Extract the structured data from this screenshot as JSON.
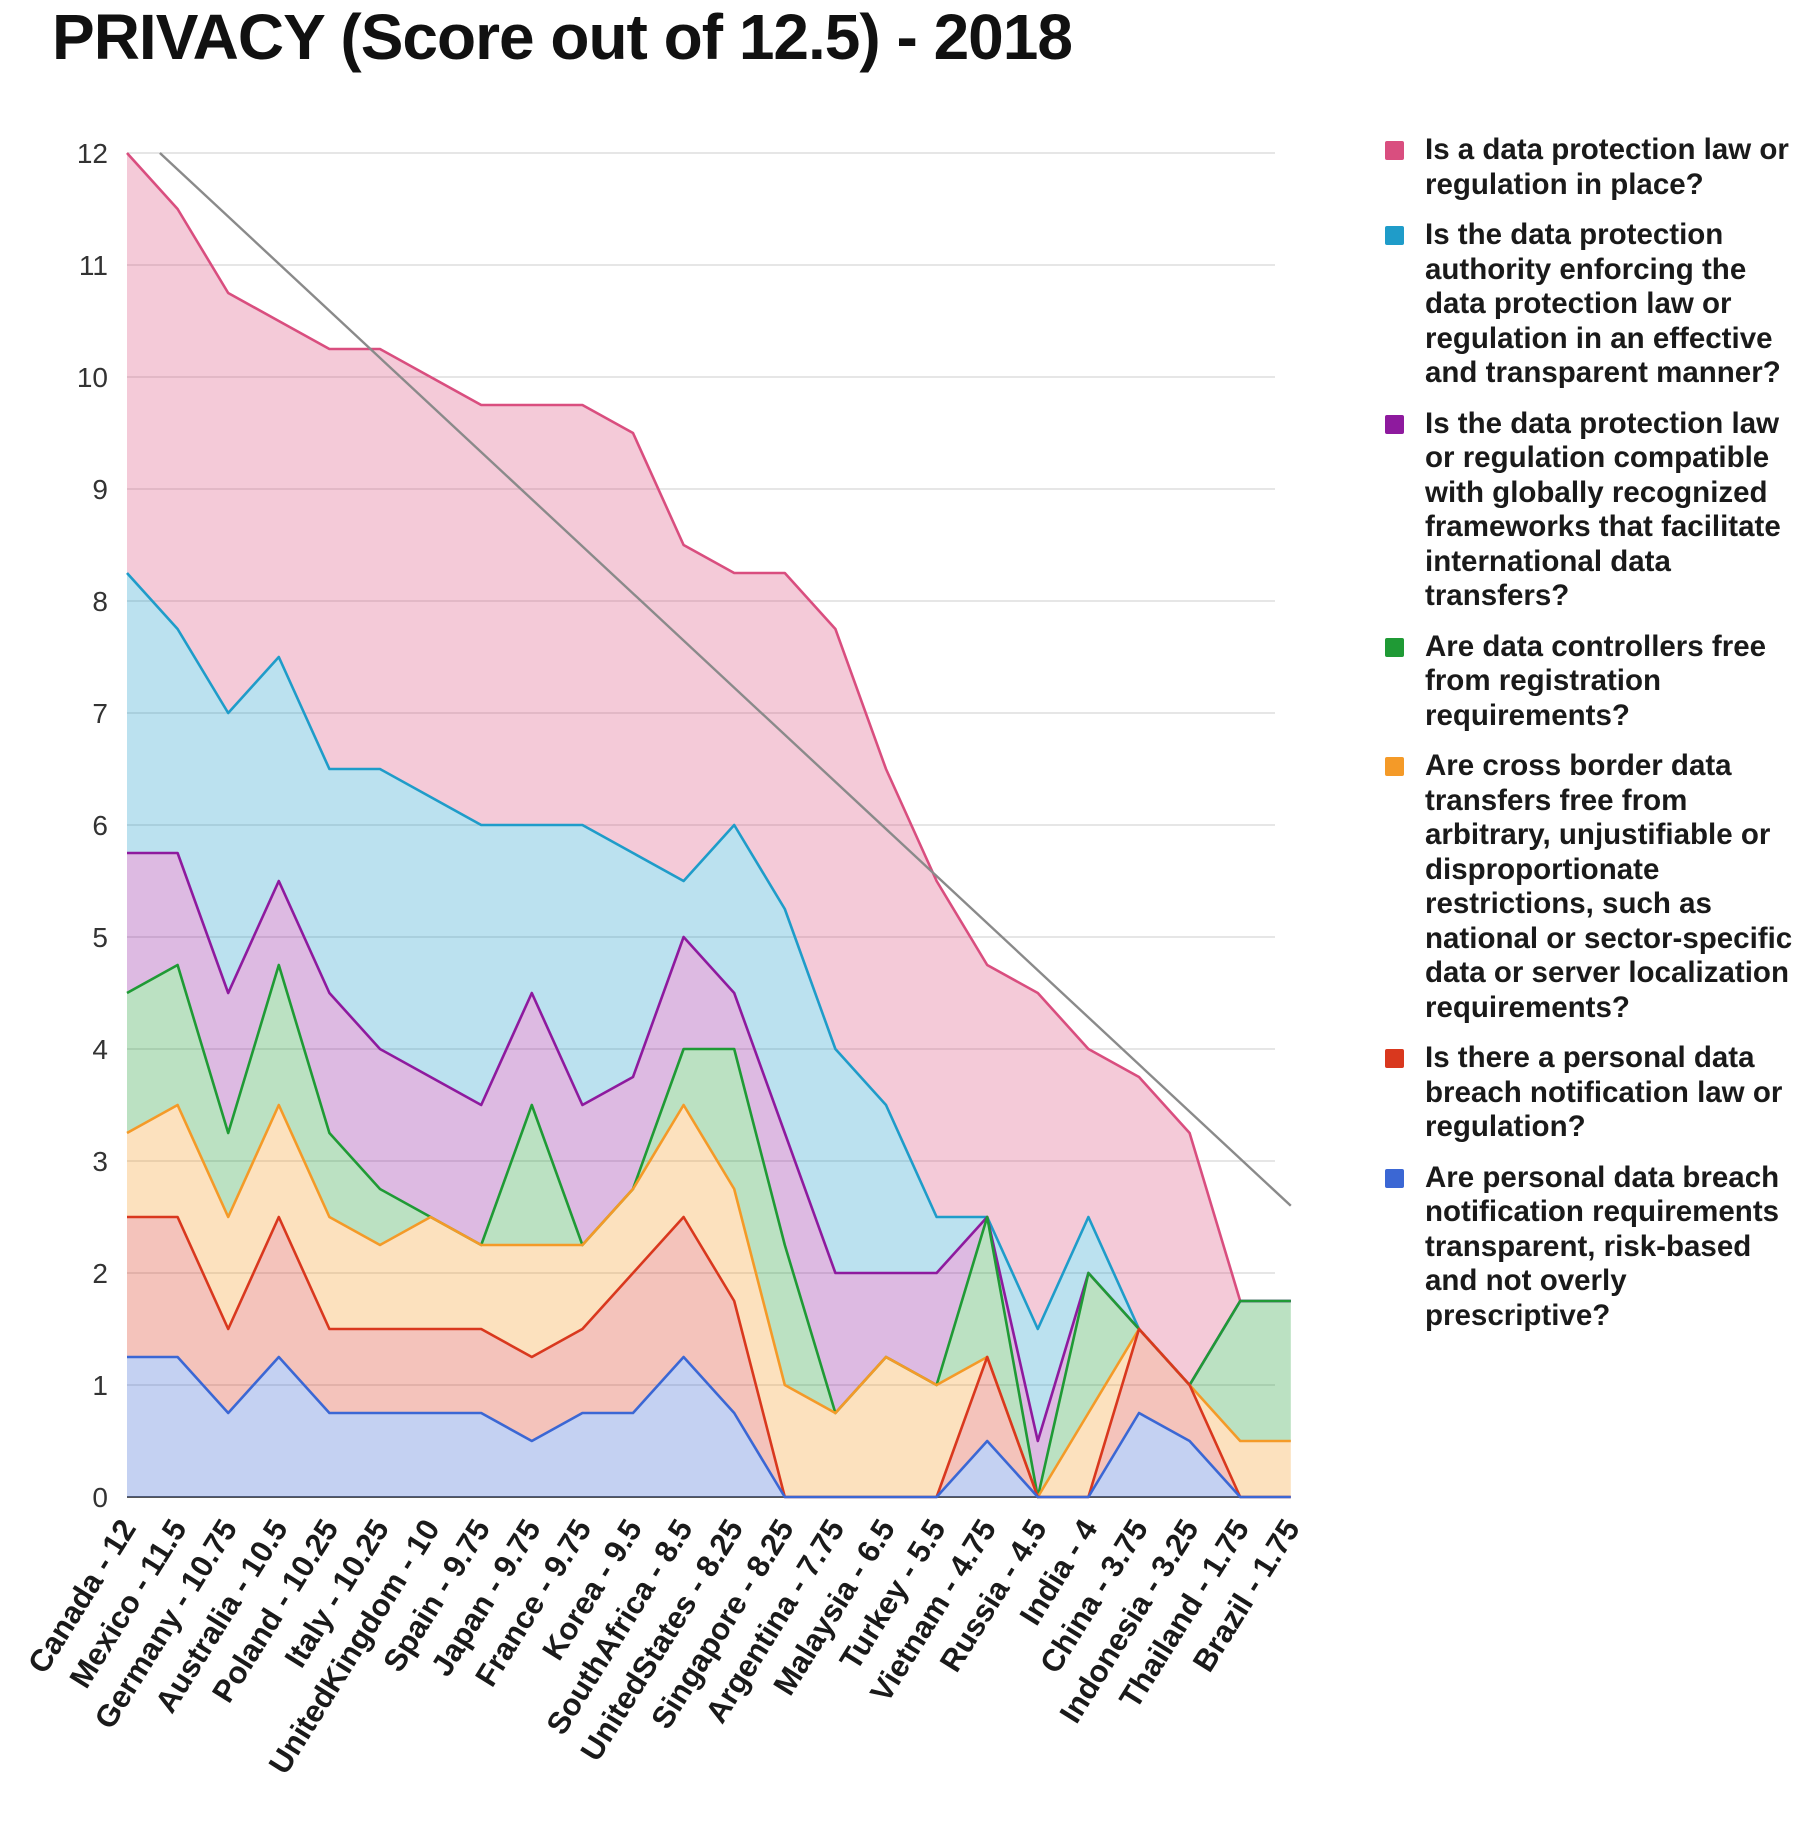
{
  "title": "PRIVACY (Score out of 12.5) - 2018",
  "colors": {
    "law": "#d94e7f",
    "authority": "#1f9cc9",
    "compatible": "#8e1a9e",
    "registration": "#1f9a35",
    "cross_border": "#f49a28",
    "breach_law": "#d9381e",
    "breach_req": "#3b67d4",
    "trend": "#8a8a8a"
  },
  "chart_data": {
    "type": "area",
    "title": "PRIVACY (Score out of 12.5) - 2018",
    "xlabel": "",
    "ylabel": "",
    "ylim": [
      0,
      12
    ],
    "yticks": [
      0,
      1,
      2,
      3,
      4,
      5,
      6,
      7,
      8,
      9,
      10,
      11,
      12
    ],
    "grid": true,
    "legend_position": "right",
    "categories": [
      "Canada - 12",
      "Mexico - 11.5",
      "Germany - 10.75",
      "Australia - 10.5",
      "Poland - 10.25",
      "Italy - 10.25",
      "UnitedKingdom - 10",
      "Spain - 9.75",
      "Japan - 9.75",
      "France - 9.75",
      "Korea - 9.5",
      "SouthAfrica - 8.5",
      "UnitedStates - 8.25",
      "Singapore - 8.25",
      "Argentina - 7.75",
      "Malaysia - 6.5",
      "Turkey - 5.5",
      "Vietnam - 4.75",
      "Russia - 4.5",
      "India - 4",
      "China - 3.75",
      "Indonesia - 3.25",
      "Thailand - 1.75",
      "Brazil - 1.75"
    ],
    "stacking": "cumulative values shown (each series plotted as the running total up to and including that series)",
    "series": [
      {
        "name": "Are personal data breach notification requirements transparent, risk-based and not overly prescriptive?",
        "color_key": "breach_req",
        "values": [
          1.25,
          1.25,
          0.75,
          1.25,
          0.75,
          0.75,
          0.75,
          0.75,
          0.5,
          0.75,
          0.75,
          1.25,
          0.75,
          0,
          0,
          0,
          0,
          0.5,
          0,
          0,
          0.75,
          0.5,
          0,
          0
        ]
      },
      {
        "name": "Is there a personal data breach notification law or regulation?",
        "color_key": "breach_law",
        "values": [
          2.5,
          2.5,
          1.5,
          2.5,
          1.5,
          1.5,
          1.5,
          1.5,
          1.25,
          1.5,
          2,
          2.5,
          1.75,
          0,
          0,
          0,
          0,
          1.25,
          0,
          0,
          1.5,
          1,
          0,
          0
        ]
      },
      {
        "name": "Are cross border data transfers free from arbitrary, unjustifiable or disproportionate restrictions, such as national or sector-specific data or server localization requirements?",
        "color_key": "cross_border",
        "values": [
          3.25,
          3.5,
          2.5,
          3.5,
          2.5,
          2.25,
          2.5,
          2.25,
          2.25,
          2.25,
          2.75,
          3.5,
          2.75,
          1,
          0.75,
          1.25,
          1,
          1.25,
          0,
          0.75,
          1.5,
          1,
          0.5,
          0.5
        ]
      },
      {
        "name": "Are data controllers free from registration requirements?",
        "color_key": "registration",
        "values": [
          4.5,
          4.75,
          3.25,
          4.75,
          3.25,
          2.75,
          2.5,
          2.25,
          3.5,
          2.25,
          2.75,
          4,
          4,
          2.25,
          0.75,
          1.25,
          1,
          2.5,
          0,
          2,
          1.5,
          1,
          1.75,
          1.75
        ]
      },
      {
        "name": "Is the data protection law or regulation compatible with globally recognized frameworks that facilitate international data transfers?",
        "color_key": "compatible",
        "values": [
          5.75,
          5.75,
          4.5,
          5.5,
          4.5,
          4,
          3.75,
          3.5,
          4.5,
          3.5,
          3.75,
          5,
          4.5,
          3.25,
          2,
          2,
          2,
          2.5,
          0.5,
          2,
          1.5,
          1,
          1.75,
          1.75
        ]
      },
      {
        "name": "Is the data protection authority enforcing the data protection law or regulation in an effective and transparent manner?",
        "color_key": "authority",
        "values": [
          8.25,
          7.75,
          7,
          7.5,
          6.5,
          6.5,
          6.25,
          6,
          6,
          6,
          5.75,
          5.5,
          6,
          5.25,
          4,
          3.5,
          2.5,
          2.5,
          1.5,
          2.5,
          1.5,
          1,
          1.75,
          1.75
        ]
      },
      {
        "name": "Is a data protection law or regulation in place?",
        "color_key": "law",
        "values": [
          12,
          11.5,
          10.75,
          10.5,
          10.25,
          10.25,
          10,
          9.75,
          9.75,
          9.75,
          9.5,
          8.5,
          8.25,
          8.25,
          7.75,
          6.5,
          5.5,
          4.75,
          4.5,
          4,
          3.75,
          3.25,
          1.75,
          1.75
        ]
      }
    ],
    "trendline": {
      "type": "linear",
      "y_start": 12,
      "y_end": 2.6,
      "x_start_index": 0.65,
      "x_end_index": 23
    }
  },
  "legend_order": [
    "law",
    "authority",
    "compatible",
    "registration",
    "cross_border",
    "breach_law",
    "breach_req"
  ],
  "legend_labels": {
    "law": "Is a data protection law or regulation in place?",
    "authority": "Is the data protection authority enforcing the data protection law or regulation in an effective and transparent manner?",
    "compatible": "Is the data protection law or regulation compatible with globally recognized frameworks that facilitate international data transfers?",
    "registration": "Are data controllers free from registration requirements?",
    "cross_border": "Are cross border data transfers free from arbitrary, unjustifiable or disproportionate restrictions, such as national or sector-specific data or server localization requirements?",
    "breach_law": "Is there a personal data breach notification law or regulation?",
    "breach_req": "Are personal data breach notification requirements transparent, risk-based and not overly prescriptive?"
  }
}
